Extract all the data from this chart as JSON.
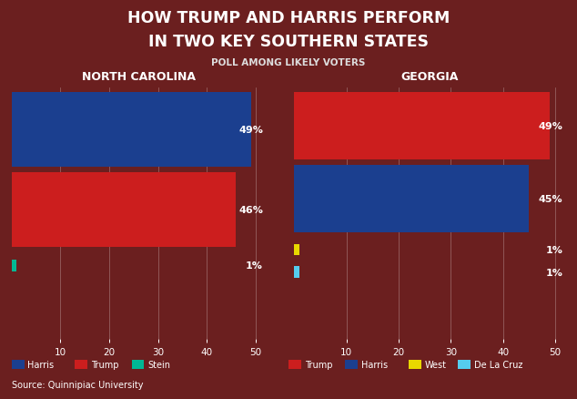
{
  "title_line1": "HOW TRUMP AND HARRIS PERFORM",
  "title_line2": "IN TWO KEY SOUTHERN STATES",
  "subtitle": "POLL AMONG LIKELY VOTERS",
  "source": "Source: Quinnipiac University",
  "background_color": "#6b1f1f",
  "title_color": "#ffffff",
  "nc": {
    "label": "NORTH CAROLINA",
    "bars": [
      {
        "candidate": "Harris",
        "value": 49,
        "color": "#1b3f8f",
        "label_pct": "49%"
      },
      {
        "candidate": "Trump",
        "value": 46,
        "color": "#cc1e1e",
        "label_pct": "46%"
      },
      {
        "candidate": "Stein",
        "value": 1,
        "color": "#00b894",
        "label_pct": "1%"
      }
    ],
    "xlim": [
      0,
      52
    ],
    "xticks": [
      10,
      20,
      30,
      40,
      50
    ]
  },
  "ga": {
    "label": "GEORGIA",
    "bars": [
      {
        "candidate": "Trump",
        "value": 49,
        "color": "#cc1e1e",
        "label_pct": "49%"
      },
      {
        "candidate": "Harris",
        "value": 45,
        "color": "#1b3f8f",
        "label_pct": "45%"
      },
      {
        "candidate": "West",
        "value": 1,
        "color": "#e8d800",
        "label_pct": "1%"
      },
      {
        "candidate": "De La Cruz",
        "value": 1,
        "color": "#55ccee",
        "label_pct": "1%"
      }
    ],
    "xlim": [
      0,
      52
    ],
    "xticks": [
      10,
      20,
      30,
      40,
      50
    ]
  },
  "nc_legend": [
    {
      "label": "Harris",
      "color": "#1b3f8f"
    },
    {
      "label": "Trump",
      "color": "#cc1e1e"
    },
    {
      "label": "Stein",
      "color": "#00b894"
    }
  ],
  "ga_legend": [
    {
      "label": "Trump",
      "color": "#cc1e1e"
    },
    {
      "label": "Harris",
      "color": "#1b3f8f"
    },
    {
      "label": "West",
      "color": "#e8d800"
    },
    {
      "label": "De La Cruz",
      "color": "#55ccee"
    }
  ]
}
